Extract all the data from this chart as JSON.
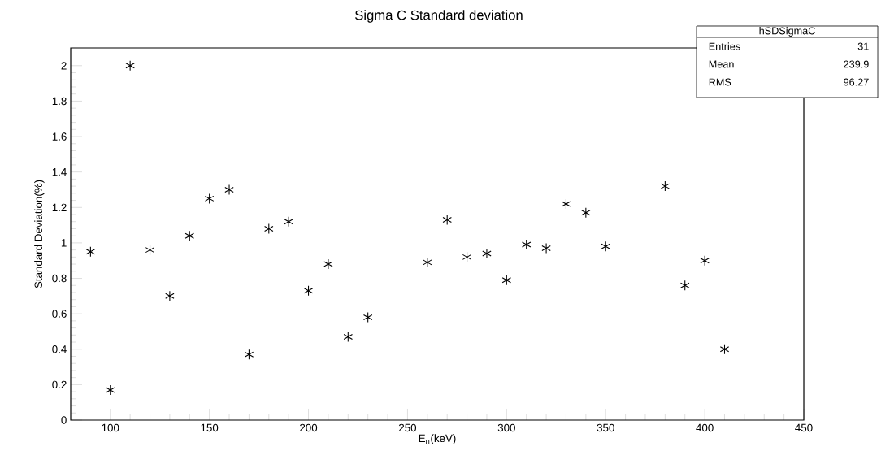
{
  "chart_data": {
    "type": "scatter",
    "title": "Sigma C Standard deviation",
    "xlabel": "E$_{n}$(keV)",
    "ylabel": "Standard Deviation(%)",
    "x": [
      90,
      100,
      110,
      120,
      130,
      140,
      150,
      160,
      170,
      180,
      190,
      200,
      210,
      220,
      230,
      260,
      270,
      280,
      290,
      300,
      310,
      320,
      330,
      340,
      350,
      380,
      390,
      400,
      410
    ],
    "values": [
      0.95,
      0.17,
      2.0,
      0.96,
      0.7,
      1.04,
      1.25,
      1.3,
      0.37,
      1.08,
      1.12,
      0.73,
      0.88,
      0.47,
      0.58,
      0.89,
      1.13,
      0.92,
      0.94,
      0.79,
      0.99,
      0.97,
      1.22,
      1.17,
      0.98,
      1.32,
      0.76,
      0.9,
      0.4
    ],
    "color": "#000000",
    "marker": "cross",
    "xlim": [
      80,
      450
    ],
    "ylim": [
      0,
      2.1
    ],
    "xticks": [
      100,
      150,
      200,
      250,
      300,
      350,
      400,
      450
    ],
    "yticks": [
      0,
      0.2,
      0.4,
      0.6,
      0.8,
      1,
      1.2,
      1.4,
      1.6,
      1.8,
      2
    ],
    "annotations": [
      "hSDSigmaC",
      "Entries",
      "31",
      "Mean",
      "239.9",
      "RMS",
      "96.27"
    ]
  }
}
